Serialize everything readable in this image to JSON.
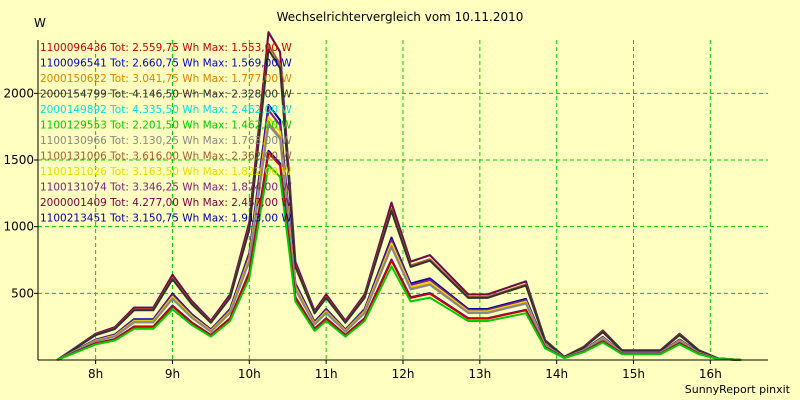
{
  "chart_data": {
    "type": "line",
    "title": "Wechselrichtervergleich vom 10.11.2010",
    "ylabel": "W",
    "footer": "SunnyReport pinxit",
    "xlim": [
      7.25,
      16.75
    ],
    "ylim": [
      0,
      2400
    ],
    "x_ticks": [
      {
        "value": 8,
        "label": "8h"
      },
      {
        "value": 9,
        "label": "9h"
      },
      {
        "value": 10,
        "label": "10h"
      },
      {
        "value": 11,
        "label": "11h"
      },
      {
        "value": 12,
        "label": "12h"
      },
      {
        "value": 13,
        "label": "13h"
      },
      {
        "value": 14,
        "label": "14h"
      },
      {
        "value": 15,
        "label": "15h"
      },
      {
        "value": 16,
        "label": "16h"
      }
    ],
    "y_ticks": [
      {
        "value": 500,
        "label": "500"
      },
      {
        "value": 1000,
        "label": "1000"
      },
      {
        "value": 1500,
        "label": "1500"
      },
      {
        "value": 2000,
        "label": "2000"
      }
    ],
    "grid": true,
    "legend_position": "top-left",
    "x": [
      7.5,
      7.75,
      8.0,
      8.25,
      8.5,
      8.75,
      9.0,
      9.25,
      9.5,
      9.75,
      10.0,
      10.25,
      10.4,
      10.6,
      10.85,
      11.0,
      11.25,
      11.5,
      11.85,
      12.1,
      12.35,
      12.6,
      12.85,
      13.1,
      13.35,
      13.6,
      13.85,
      14.1,
      14.35,
      14.6,
      14.85,
      15.1,
      15.35,
      15.6,
      15.85,
      16.1,
      16.4
    ],
    "base_profile": [
      0,
      0.04,
      0.08,
      0.1,
      0.16,
      0.16,
      0.26,
      0.18,
      0.12,
      0.2,
      0.42,
      1.0,
      0.94,
      0.3,
      0.15,
      0.2,
      0.12,
      0.2,
      0.48,
      0.3,
      0.32,
      0.26,
      0.2,
      0.2,
      0.22,
      0.24,
      0.06,
      0.01,
      0.04,
      0.09,
      0.03,
      0.03,
      0.03,
      0.08,
      0.03,
      0.005,
      0
    ],
    "series": [
      {
        "label": "1100096436 Tot: 2.559,75 Wh Max: 1.553,00 W",
        "color": "#cc0000",
        "peak": 1553
      },
      {
        "label": "1100096541 Tot: 2.660,75 Wh Max: 1.569,00 W",
        "color": "#0000cc",
        "peak": 1569
      },
      {
        "label": "2000150622 Tot: 3.041,75 Wh Max: 1.777,00 W",
        "color": "#e08000",
        "peak": 1777
      },
      {
        "label": "2000154799 Tot: 4.146,50 Wh Max: 2.328,00 W",
        "color": "#303030",
        "peak": 2328
      },
      {
        "label": "2000149892 Tot: 4.335,50 Wh Max: 2.462,00 W",
        "color": "#00e0e0",
        "peak": 2462
      },
      {
        "label": "1100129553 Tot: 2.201,50 Wh Max: 1.462,00 W",
        "color": "#00cc00",
        "peak": 1462
      },
      {
        "label": "1100130966 Tot: 3.130,25 Wh Max: 1.763,00 W",
        "color": "#888888",
        "peak": 1763
      },
      {
        "label": "1100131006 Tot: 3.616,00 Wh Max: 2.362,00 W",
        "color": "#a06030",
        "peak": 2362
      },
      {
        "label": "1100131026 Tot: 3.163,50 Wh Max: 1.822,00 W",
        "color": "#e0e000",
        "peak": 1822
      },
      {
        "label": "1100131074 Tot: 3.346,25 Wh Max: 1.874,00 W",
        "color": "#802080",
        "peak": 1874
      },
      {
        "label": "2000001409 Tot: 4.277,00 Wh Max: 2.457,00 W",
        "color": "#800040",
        "peak": 2457
      },
      {
        "label": "1100213451 Tot: 3.150,75 Wh Max: 1.913,00 W",
        "color": "#0000a0",
        "peak": 1913
      }
    ]
  }
}
